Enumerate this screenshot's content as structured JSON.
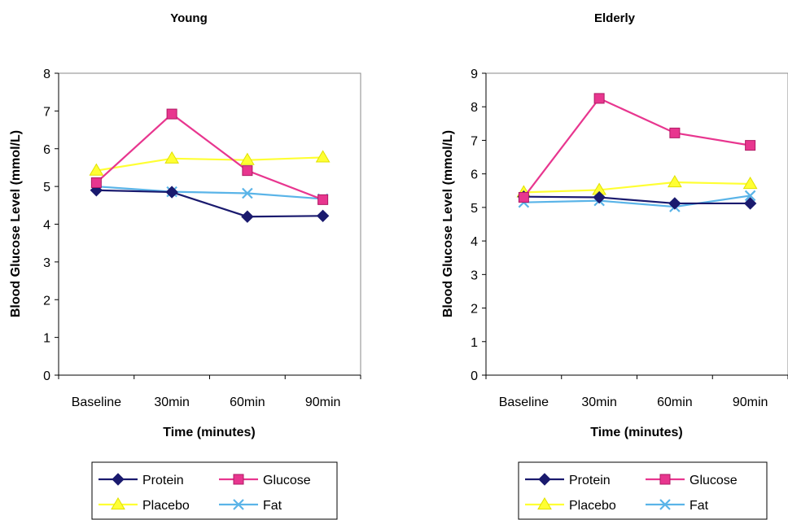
{
  "chart_data": [
    {
      "type": "line",
      "title": "Young",
      "xlabel": "Time (minutes)",
      "ylabel": "Blood Glucose Level (mmol/L)",
      "categories": [
        "Baseline",
        "30min",
        "60min",
        "90min"
      ],
      "ylim": [
        0,
        8
      ],
      "yticks": [
        0,
        1,
        2,
        3,
        4,
        5,
        6,
        7,
        8
      ],
      "grid": false,
      "legend": "bottom",
      "series": [
        {
          "name": "Protein",
          "values": [
            4.9,
            4.85,
            4.2,
            4.22
          ],
          "color": "#1a1a6e",
          "marker": "diamond"
        },
        {
          "name": "Glucose",
          "values": [
            5.1,
            6.92,
            5.42,
            4.65
          ],
          "color": "#e8368f",
          "marker": "square"
        },
        {
          "name": "Placebo",
          "values": [
            5.42,
            5.74,
            5.7,
            5.77
          ],
          "color": "#ffff33",
          "marker": "triangle"
        },
        {
          "name": "Fat",
          "values": [
            5.0,
            4.86,
            4.82,
            4.67
          ],
          "color": "#5ab4e8",
          "marker": "x"
        }
      ]
    },
    {
      "type": "line",
      "title": "Elderly",
      "xlabel": "Time (minutes)",
      "ylabel": "Blood Glucose Level (mmol/L)",
      "categories": [
        "Baseline",
        "30min",
        "60min",
        "90min"
      ],
      "ylim": [
        0,
        9
      ],
      "yticks": [
        0,
        1,
        2,
        3,
        4,
        5,
        6,
        7,
        8,
        9
      ],
      "grid": false,
      "legend": "bottom",
      "series": [
        {
          "name": "Protein",
          "values": [
            5.32,
            5.3,
            5.12,
            5.12
          ],
          "color": "#1a1a6e",
          "marker": "diamond"
        },
        {
          "name": "Glucose",
          "values": [
            5.3,
            8.25,
            7.22,
            6.85
          ],
          "color": "#e8368f",
          "marker": "square"
        },
        {
          "name": "Placebo",
          "values": [
            5.45,
            5.52,
            5.75,
            5.7
          ],
          "color": "#ffff33",
          "marker": "triangle"
        },
        {
          "name": "Fat",
          "values": [
            5.15,
            5.2,
            5.02,
            5.35
          ],
          "color": "#5ab4e8",
          "marker": "x"
        }
      ]
    }
  ]
}
